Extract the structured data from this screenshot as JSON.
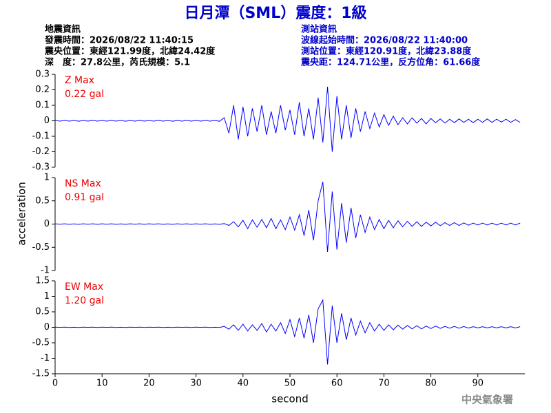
{
  "header": {
    "title": "日月潭（SML）震度：1級",
    "left_lines": [
      "地震資訊",
      "發震時間：2026/08/22 11:40:15",
      "震央位置：東經121.99度，北緯24.42度",
      "深　度：27.8公里，芮氏規模：5.1"
    ],
    "right_lines": [
      "測站資訊",
      "波線起始時間：2026/08/22 11:40:00",
      "測站位置：東經120.91度，北緯23.88度",
      "震央距：124.71公里，反方位角：61.66度"
    ]
  },
  "footer": {
    "credit": "中央氣象署"
  },
  "chart_data": [
    {
      "type": "line",
      "annotations": [
        "Z Max",
        "0.22 gal"
      ],
      "xlim": [
        0,
        100
      ],
      "ylim": [
        -0.3,
        0.3
      ],
      "yticks": [
        0.3,
        0.2,
        0.1,
        0,
        -0.1,
        -0.2,
        -0.3
      ],
      "x": [
        0,
        1,
        2,
        3,
        4,
        5,
        6,
        7,
        8,
        9,
        10,
        11,
        12,
        13,
        14,
        15,
        16,
        17,
        18,
        19,
        20,
        21,
        22,
        23,
        24,
        25,
        26,
        27,
        28,
        29,
        30,
        31,
        32,
        33,
        34,
        35,
        36,
        37,
        38,
        39,
        40,
        41,
        42,
        43,
        44,
        45,
        46,
        47,
        48,
        49,
        50,
        51,
        52,
        53,
        54,
        55,
        56,
        57,
        58,
        59,
        60,
        61,
        62,
        63,
        64,
        65,
        66,
        67,
        68,
        69,
        70,
        71,
        72,
        73,
        74,
        75,
        76,
        77,
        78,
        79,
        80,
        81,
        82,
        83,
        84,
        85,
        86,
        87,
        88,
        89,
        90,
        91,
        92,
        93,
        94,
        95,
        96,
        97,
        98,
        99
      ],
      "series": [
        {
          "name": "Z",
          "color": "#0000ff",
          "values": [
            0.002,
            -0.002,
            0.003,
            -0.002,
            0.002,
            -0.003,
            0.002,
            -0.002,
            0.003,
            -0.002,
            0.002,
            -0.002,
            0.003,
            -0.002,
            0.002,
            -0.003,
            0.002,
            -0.002,
            0.003,
            -0.002,
            0.002,
            -0.002,
            0.003,
            -0.002,
            0.002,
            -0.003,
            0.002,
            -0.002,
            0.003,
            -0.002,
            0.002,
            -0.002,
            0.003,
            -0.002,
            0.002,
            -0.003,
            0.02,
            -0.08,
            0.1,
            -0.12,
            0.09,
            -0.1,
            0.08,
            -0.07,
            0.1,
            -0.09,
            0.06,
            -0.08,
            0.1,
            -0.06,
            0.07,
            -0.09,
            0.12,
            -0.1,
            0.08,
            -0.12,
            0.15,
            -0.14,
            0.22,
            -0.2,
            0.16,
            -0.12,
            0.1,
            -0.11,
            0.08,
            -0.07,
            0.06,
            -0.05,
            0.05,
            -0.04,
            0.04,
            -0.03,
            0.03,
            -0.025,
            0.02,
            -0.02,
            0.02,
            -0.015,
            0.015,
            -0.02,
            0.015,
            -0.012,
            0.012,
            -0.015,
            0.01,
            -0.012,
            0.012,
            -0.01,
            0.01,
            -0.012,
            0.01,
            -0.01,
            0.012,
            -0.01,
            0.01,
            -0.008,
            0.01,
            -0.01,
            0.008,
            -0.01
          ]
        }
      ]
    },
    {
      "type": "line",
      "annotations": [
        "NS Max",
        "0.91 gal"
      ],
      "ylabel": "acceleration",
      "xlim": [
        0,
        100
      ],
      "ylim": [
        -1,
        1
      ],
      "yticks": [
        1,
        0.5,
        0,
        -0.5,
        -1
      ],
      "x": [
        0,
        1,
        2,
        3,
        4,
        5,
        6,
        7,
        8,
        9,
        10,
        11,
        12,
        13,
        14,
        15,
        16,
        17,
        18,
        19,
        20,
        21,
        22,
        23,
        24,
        25,
        26,
        27,
        28,
        29,
        30,
        31,
        32,
        33,
        34,
        35,
        36,
        37,
        38,
        39,
        40,
        41,
        42,
        43,
        44,
        45,
        46,
        47,
        48,
        49,
        50,
        51,
        52,
        53,
        54,
        55,
        56,
        57,
        58,
        59,
        60,
        61,
        62,
        63,
        64,
        65,
        66,
        67,
        68,
        69,
        70,
        71,
        72,
        73,
        74,
        75,
        76,
        77,
        78,
        79,
        80,
        81,
        82,
        83,
        84,
        85,
        86,
        87,
        88,
        89,
        90,
        91,
        92,
        93,
        94,
        95,
        96,
        97,
        98,
        99
      ],
      "series": [
        {
          "name": "NS",
          "color": "#0000ff",
          "values": [
            0.005,
            -0.004,
            0.005,
            -0.005,
            0.004,
            -0.005,
            0.005,
            -0.004,
            0.005,
            -0.005,
            0.005,
            -0.004,
            0.005,
            -0.005,
            0.004,
            -0.005,
            0.005,
            -0.004,
            0.005,
            -0.005,
            0.005,
            -0.004,
            0.005,
            -0.005,
            0.004,
            -0.005,
            0.005,
            -0.004,
            0.005,
            -0.005,
            0.005,
            -0.004,
            0.005,
            -0.005,
            0.004,
            -0.005,
            0.01,
            -0.03,
            0.05,
            -0.06,
            0.08,
            -0.1,
            0.09,
            -0.07,
            0.1,
            -0.08,
            0.12,
            -0.1,
            0.09,
            -0.12,
            0.15,
            -0.13,
            0.2,
            -0.25,
            0.3,
            -0.35,
            0.5,
            0.91,
            -0.6,
            0.7,
            -0.55,
            0.45,
            -0.4,
            0.35,
            -0.3,
            0.2,
            -0.18,
            0.15,
            -0.12,
            0.1,
            -0.1,
            0.08,
            -0.08,
            0.07,
            -0.06,
            0.06,
            -0.05,
            0.05,
            -0.05,
            0.04,
            -0.04,
            0.04,
            -0.035,
            0.03,
            -0.03,
            0.03,
            -0.03,
            0.025,
            -0.025,
            0.02,
            -0.02,
            0.02,
            -0.02,
            0.02,
            -0.02,
            0.02,
            -0.02,
            0.02,
            -0.02,
            0.02
          ]
        }
      ]
    },
    {
      "type": "line",
      "annotations": [
        "EW Max",
        "1.20 gal"
      ],
      "xlabel": "second",
      "xlim": [
        0,
        100
      ],
      "xticks": [
        0,
        10,
        20,
        30,
        40,
        50,
        60,
        70,
        80,
        90
      ],
      "ylim": [
        -1.5,
        1.5
      ],
      "yticks": [
        1.5,
        1,
        0.5,
        0,
        -0.5,
        -1,
        -1.5
      ],
      "x": [
        0,
        1,
        2,
        3,
        4,
        5,
        6,
        7,
        8,
        9,
        10,
        11,
        12,
        13,
        14,
        15,
        16,
        17,
        18,
        19,
        20,
        21,
        22,
        23,
        24,
        25,
        26,
        27,
        28,
        29,
        30,
        31,
        32,
        33,
        34,
        35,
        36,
        37,
        38,
        39,
        40,
        41,
        42,
        43,
        44,
        45,
        46,
        47,
        48,
        49,
        50,
        51,
        52,
        53,
        54,
        55,
        56,
        57,
        58,
        59,
        60,
        61,
        62,
        63,
        64,
        65,
        66,
        67,
        68,
        69,
        70,
        71,
        72,
        73,
        74,
        75,
        76,
        77,
        78,
        79,
        80,
        81,
        82,
        83,
        84,
        85,
        86,
        87,
        88,
        89,
        90,
        91,
        92,
        93,
        94,
        95,
        96,
        97,
        98,
        99
      ],
      "series": [
        {
          "name": "EW",
          "color": "#0000ff",
          "values": [
            0.005,
            -0.004,
            0.005,
            -0.005,
            0.004,
            -0.005,
            0.005,
            -0.004,
            0.005,
            -0.005,
            0.005,
            -0.004,
            0.005,
            -0.005,
            0.004,
            -0.005,
            0.005,
            -0.004,
            0.005,
            -0.005,
            0.005,
            -0.004,
            0.005,
            -0.005,
            0.004,
            -0.005,
            0.005,
            -0.004,
            0.005,
            -0.005,
            0.005,
            -0.004,
            0.005,
            -0.005,
            0.004,
            -0.005,
            0.03,
            -0.06,
            0.08,
            -0.1,
            0.1,
            -0.12,
            0.08,
            -0.1,
            0.12,
            -0.15,
            0.1,
            -0.12,
            0.15,
            -0.2,
            0.25,
            -0.3,
            0.3,
            -0.35,
            0.4,
            -0.5,
            0.6,
            0.88,
            -1.2,
            0.7,
            -0.5,
            0.45,
            -0.4,
            0.3,
            -0.25,
            0.2,
            -0.18,
            0.15,
            -0.12,
            0.1,
            -0.1,
            0.08,
            -0.08,
            0.07,
            -0.06,
            0.06,
            -0.05,
            0.05,
            -0.05,
            0.04,
            -0.04,
            0.04,
            -0.035,
            0.03,
            -0.03,
            0.03,
            -0.03,
            0.025,
            -0.025,
            0.02,
            -0.02,
            0.02,
            -0.02,
            0.02,
            -0.02,
            0.02,
            -0.02,
            0.02,
            -0.02,
            0.02
          ]
        }
      ]
    }
  ]
}
